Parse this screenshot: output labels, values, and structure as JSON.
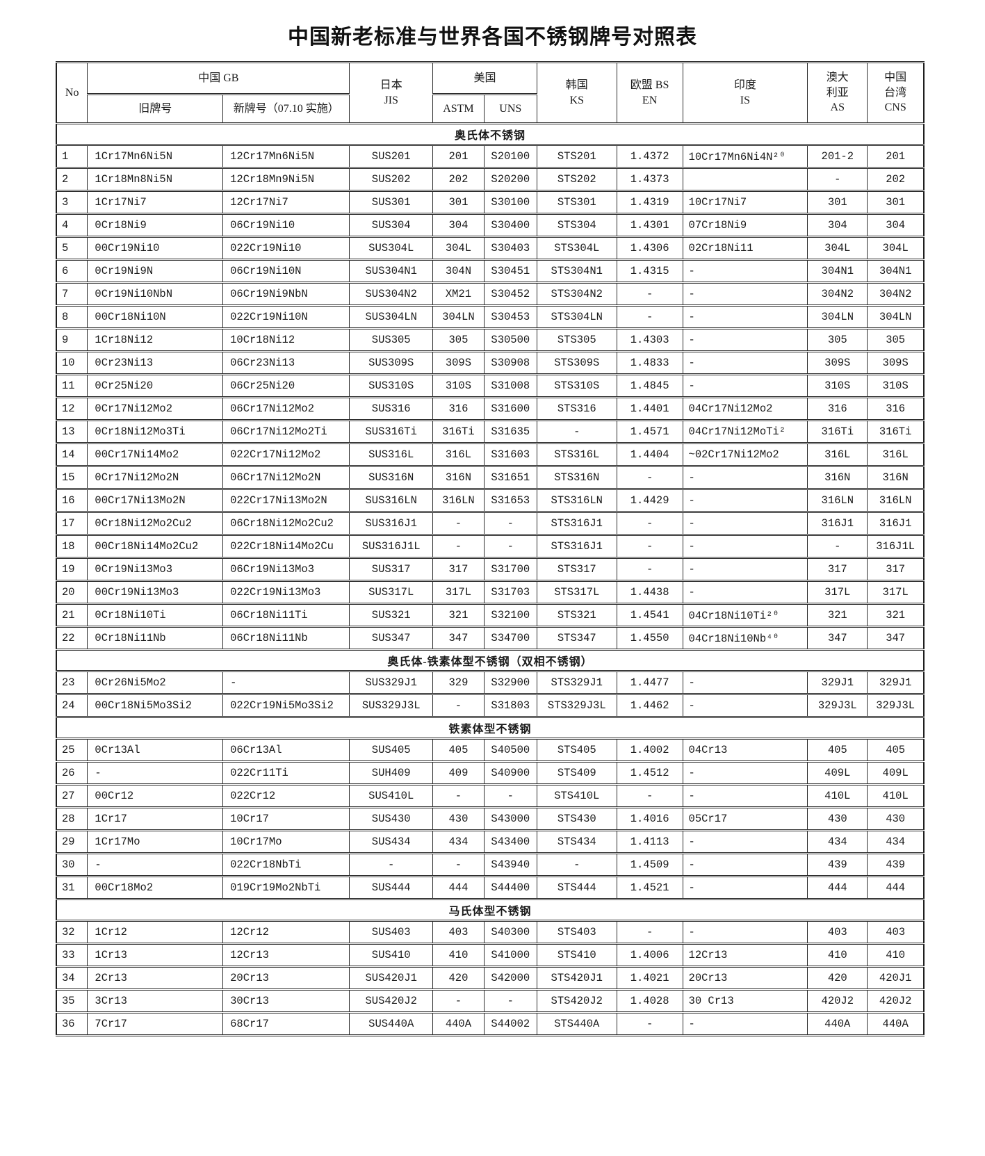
{
  "title": "中国新老标准与世界各国不锈钢牌号对照表",
  "colors": {
    "text": "#1a1a1a",
    "border": "#2b2b2b",
    "background": "#ffffff"
  },
  "table": {
    "column_keys": [
      "no",
      "gb-old",
      "gb-new",
      "jis",
      "astm",
      "uns",
      "ks",
      "en",
      "is",
      "as",
      "cns"
    ],
    "headers": {
      "no": "No",
      "china_gb": "中国 GB",
      "old": "旧牌号",
      "new": "新牌号（07.10 实施）",
      "japan": {
        "l1": "日本",
        "l2": "JIS"
      },
      "usa": "美国",
      "astm": "ASTM",
      "uns": "UNS",
      "korea": {
        "l1": "韩国",
        "l2": "KS"
      },
      "eu": {
        "l1": "欧盟 BS",
        "l2": "EN"
      },
      "india": {
        "l1": "印度",
        "l2": "IS"
      },
      "australia": {
        "l1": "澳大",
        "l2": "利亚",
        "l3": "AS"
      },
      "taiwan": {
        "l1": "中国",
        "l2": "台湾",
        "l3": "CNS"
      }
    },
    "sections": [
      {
        "title": "奥氏体不锈钢",
        "rows": [
          [
            "1",
            "1Cr17Mn6Ni5N",
            "12Cr17Mn6Ni5N",
            "SUS201",
            "201",
            "S20100",
            "STS201",
            "1.4372",
            "10Cr17Mn6Ni4N²⁰",
            "201-2",
            "201"
          ],
          [
            "2",
            "1Cr18Mn8Ni5N",
            "12Cr18Mn9Ni5N",
            "SUS202",
            "202",
            "S20200",
            "STS202",
            "1.4373",
            "",
            "-",
            "202"
          ],
          [
            "3",
            "1Cr17Ni7",
            "12Cr17Ni7",
            "SUS301",
            "301",
            "S30100",
            "STS301",
            "1.4319",
            "10Cr17Ni7",
            "301",
            "301"
          ],
          [
            "4",
            "0Cr18Ni9",
            "06Cr19Ni10",
            "SUS304",
            "304",
            "S30400",
            "STS304",
            "1.4301",
            "07Cr18Ni9",
            "304",
            "304"
          ],
          [
            "5",
            "00Cr19Ni10",
            "022Cr19Ni10",
            "SUS304L",
            "304L",
            "S30403",
            "STS304L",
            "1.4306",
            "02Cr18Ni11",
            "304L",
            "304L"
          ],
          [
            "6",
            "0Cr19Ni9N",
            "06Cr19Ni10N",
            "SUS304N1",
            "304N",
            "S30451",
            "STS304N1",
            "1.4315",
            "-",
            "304N1",
            "304N1"
          ],
          [
            "7",
            "0Cr19Ni10NbN",
            "06Cr19Ni9NbN",
            "SUS304N2",
            "XM21",
            "S30452",
            "STS304N2",
            "-",
            "-",
            "304N2",
            "304N2"
          ],
          [
            "8",
            "00Cr18Ni10N",
            "022Cr19Ni10N",
            "SUS304LN",
            "304LN",
            "S30453",
            "STS304LN",
            "-",
            "-",
            "304LN",
            "304LN"
          ],
          [
            "9",
            "1Cr18Ni12",
            "10Cr18Ni12",
            "SUS305",
            "305",
            "S30500",
            "STS305",
            "1.4303",
            "-",
            "305",
            "305"
          ],
          [
            "10",
            "0Cr23Ni13",
            "06Cr23Ni13",
            "SUS309S",
            "309S",
            "S30908",
            "STS309S",
            "1.4833",
            "-",
            "309S",
            "309S"
          ],
          [
            "11",
            "0Cr25Ni20",
            "06Cr25Ni20",
            "SUS310S",
            "310S",
            "S31008",
            "STS310S",
            "1.4845",
            "-",
            "310S",
            "310S"
          ],
          [
            "12",
            "0Cr17Ni12Mo2",
            "06Cr17Ni12Mo2",
            "SUS316",
            "316",
            "S31600",
            "STS316",
            "1.4401",
            "04Cr17Ni12Mo2",
            "316",
            "316"
          ],
          [
            "13",
            "0Cr18Ni12Mo3Ti",
            "06Cr17Ni12Mo2Ti",
            "SUS316Ti",
            "316Ti",
            "S31635",
            "-",
            "1.4571",
            "04Cr17Ni12MoTi²",
            "316Ti",
            "316Ti"
          ],
          [
            "14",
            "00Cr17Ni14Mo2",
            "022Cr17Ni12Mo2",
            "SUS316L",
            "316L",
            "S31603",
            "STS316L",
            "1.4404",
            "~02Cr17Ni12Mo2",
            "316L",
            "316L"
          ],
          [
            "15",
            "0Cr17Ni12Mo2N",
            "06Cr17Ni12Mo2N",
            "SUS316N",
            "316N",
            "S31651",
            "STS316N",
            "-",
            "-",
            "316N",
            "316N"
          ],
          [
            "16",
            "00Cr17Ni13Mo2N",
            "022Cr17Ni13Mo2N",
            "SUS316LN",
            "316LN",
            "S31653",
            "STS316LN",
            "1.4429",
            "-",
            "316LN",
            "316LN"
          ],
          [
            "17",
            "0Cr18Ni12Mo2Cu2",
            "06Cr18Ni12Mo2Cu2",
            "SUS316J1",
            "-",
            "-",
            "STS316J1",
            "-",
            "-",
            "316J1",
            "316J1"
          ],
          [
            "18",
            "00Cr18Ni14Mo2Cu2",
            "022Cr18Ni14Mo2Cu",
            "SUS316J1L",
            "-",
            "-",
            "STS316J1",
            "-",
            "-",
            "-",
            "316J1L"
          ],
          [
            "19",
            "0Cr19Ni13Mo3",
            "06Cr19Ni13Mo3",
            "SUS317",
            "317",
            "S31700",
            "STS317",
            "-",
            "-",
            "317",
            "317"
          ],
          [
            "20",
            "00Cr19Ni13Mo3",
            "022Cr19Ni13Mo3",
            "SUS317L",
            "317L",
            "S31703",
            "STS317L",
            "1.4438",
            "-",
            "317L",
            "317L"
          ],
          [
            "21",
            "0Cr18Ni10Ti",
            "06Cr18Ni11Ti",
            "SUS321",
            "321",
            "S32100",
            "STS321",
            "1.4541",
            "04Cr18Ni10Ti²⁰",
            "321",
            "321"
          ],
          [
            "22",
            "0Cr18Ni11Nb",
            "06Cr18Ni11Nb",
            "SUS347",
            "347",
            "S34700",
            "STS347",
            "1.4550",
            "04Cr18Ni10Nb⁴⁰",
            "347",
            "347"
          ]
        ]
      },
      {
        "title": "奥氏体-铁素体型不锈钢（双相不锈钢）",
        "rows": [
          [
            "23",
            "0Cr26Ni5Mo2",
            "-",
            "SUS329J1",
            "329",
            "S32900",
            "STS329J1",
            "1.4477",
            "-",
            "329J1",
            "329J1"
          ],
          [
            "24",
            "00Cr18Ni5Mo3Si2",
            "022Cr19Ni5Mo3Si2",
            "SUS329J3L",
            "-",
            "S31803",
            "STS329J3L",
            "1.4462",
            "-",
            "329J3L",
            "329J3L"
          ]
        ]
      },
      {
        "title": "铁素体型不锈钢",
        "rows": [
          [
            "25",
            "0Cr13Al",
            "06Cr13Al",
            "SUS405",
            "405",
            "S40500",
            "STS405",
            "1.4002",
            "04Cr13",
            "405",
            "405"
          ],
          [
            "26",
            "-",
            "022Cr11Ti",
            "SUH409",
            "409",
            "S40900",
            "STS409",
            "1.4512",
            "-",
            "409L",
            "409L"
          ],
          [
            "27",
            "00Cr12",
            "022Cr12",
            "SUS410L",
            "-",
            "-",
            "STS410L",
            "-",
            "-",
            "410L",
            "410L"
          ],
          [
            "28",
            "1Cr17",
            "10Cr17",
            "SUS430",
            "430",
            "S43000",
            "STS430",
            "1.4016",
            "05Cr17",
            "430",
            "430"
          ],
          [
            "29",
            "1Cr17Mo",
            "10Cr17Mo",
            "SUS434",
            "434",
            "S43400",
            "STS434",
            "1.4113",
            "-",
            "434",
            "434"
          ],
          [
            "30",
            "-",
            "022Cr18NbTi",
            "-",
            "-",
            "S43940",
            "-",
            "1.4509",
            "-",
            "439",
            "439"
          ],
          [
            "31",
            "00Cr18Mo2",
            "019Cr19Mo2NbTi",
            "SUS444",
            "444",
            "S44400",
            "STS444",
            "1.4521",
            "-",
            "444",
            "444"
          ]
        ]
      },
      {
        "title": "马氏体型不锈钢",
        "rows": [
          [
            "32",
            "1Cr12",
            "12Cr12",
            "SUS403",
            "403",
            "S40300",
            "STS403",
            "-",
            "-",
            "403",
            "403"
          ],
          [
            "33",
            "1Cr13",
            "12Cr13",
            "SUS410",
            "410",
            "S41000",
            "STS410",
            "1.4006",
            "12Cr13",
            "410",
            "410"
          ],
          [
            "34",
            "2Cr13",
            "20Cr13",
            "SUS420J1",
            "420",
            "S42000",
            "STS420J1",
            "1.4021",
            "20Cr13",
            "420",
            "420J1"
          ],
          [
            "35",
            "3Cr13",
            "30Cr13",
            "SUS420J2",
            "-",
            "-",
            "STS420J2",
            "1.4028",
            "30 Cr13",
            "420J2",
            "420J2"
          ],
          [
            "36",
            "7Cr17",
            "68Cr17",
            "SUS440A",
            "440A",
            "S44002",
            "STS440A",
            "-",
            "-",
            "440A",
            "440A"
          ]
        ]
      }
    ]
  }
}
